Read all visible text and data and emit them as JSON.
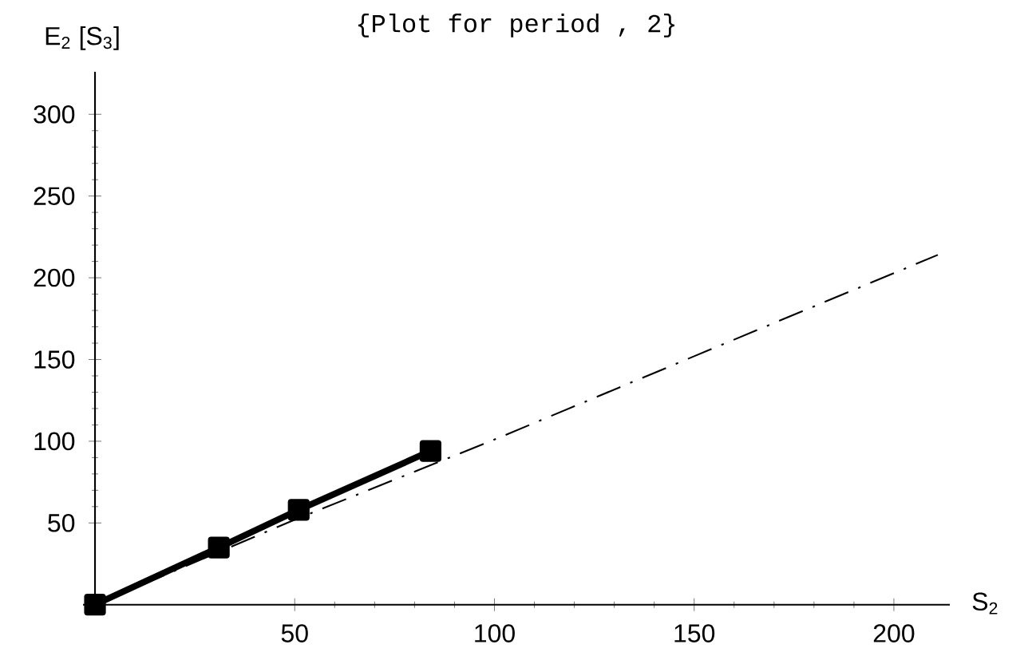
{
  "chart_data": {
    "type": "line",
    "title": "{Plot for period , 2}",
    "xlabel": "S$_{2}$",
    "ylabel": "E$_{2}$ [S$_{3}$]",
    "series": [
      {
        "color": "#000000",
        "x": [
          0,
          31,
          51,
          84
        ],
        "values": [
          0,
          35,
          58,
          94
        ],
        "marker": "square",
        "line_style": "solid"
      },
      {
        "color": "#000000",
        "x": [
          0,
          50,
          100,
          150,
          211
        ],
        "values": [
          0,
          52,
          101,
          152,
          214
        ],
        "marker": "none",
        "line_style": "dashed"
      }
    ],
    "xlim": [
      -3,
      214
    ],
    "ylim": [
      -6,
      326
    ],
    "xticks": [
      50,
      100,
      150,
      200
    ],
    "yticks": [
      50,
      100,
      150,
      200,
      250,
      300
    ],
    "grid": false
  }
}
